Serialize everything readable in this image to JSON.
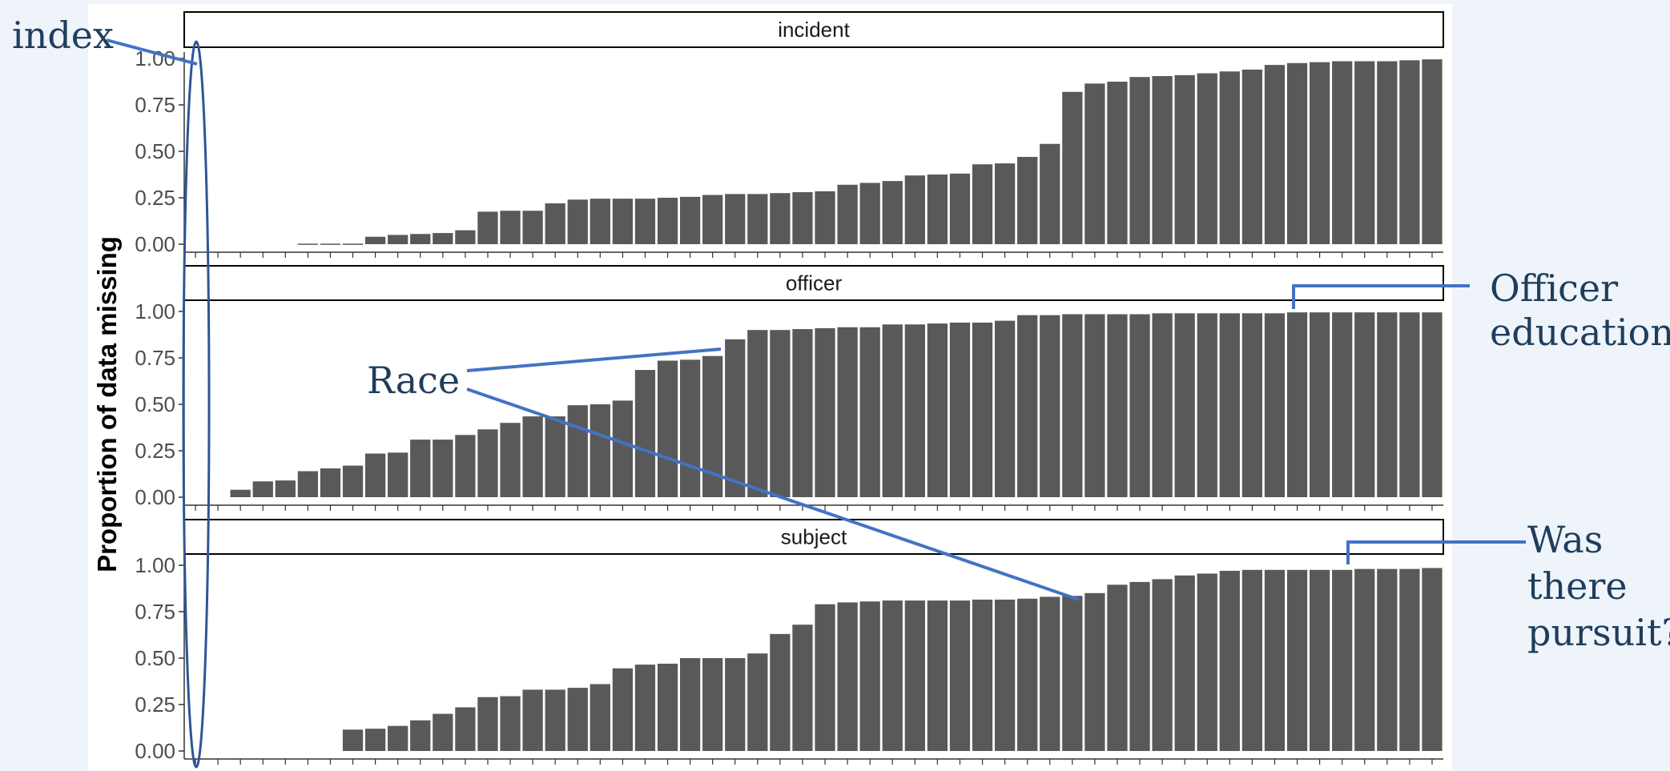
{
  "chart_data": {
    "type": "bar",
    "ylabel": "Proportion of data missing",
    "xlabel": "",
    "ylim": [
      0,
      1
    ],
    "yticks": [
      "0.00",
      "0.25",
      "0.50",
      "0.75",
      "1.00"
    ],
    "grid": false,
    "legend": "none",
    "bar_color": "#595959",
    "panels": [
      {
        "name": "incident",
        "values": [
          0,
          0,
          0,
          0,
          0,
          0,
          0.003,
          0.003,
          0.003,
          0.04,
          0.05,
          0.055,
          0.06,
          0.075,
          0.175,
          0.18,
          0.18,
          0.22,
          0.24,
          0.245,
          0.245,
          0.245,
          0.25,
          0.255,
          0.265,
          0.27,
          0.27,
          0.275,
          0.28,
          0.285,
          0.32,
          0.33,
          0.34,
          0.37,
          0.375,
          0.38,
          0.43,
          0.435,
          0.47,
          0.54,
          0.82,
          0.865,
          0.875,
          0.9,
          0.905,
          0.91,
          0.92,
          0.93,
          0.94,
          0.965,
          0.975,
          0.98,
          0.985,
          0.985,
          0.985,
          0.99,
          0.995
        ]
      },
      {
        "name": "officer",
        "values": [
          0,
          0.04,
          0.085,
          0.09,
          0.14,
          0.155,
          0.17,
          0.235,
          0.24,
          0.31,
          0.31,
          0.335,
          0.365,
          0.4,
          0.435,
          0.435,
          0.495,
          0.5,
          0.52,
          0.685,
          0.735,
          0.74,
          0.76,
          0.85,
          0.9,
          0.9,
          0.905,
          0.91,
          0.915,
          0.915,
          0.93,
          0.93,
          0.935,
          0.94,
          0.94,
          0.95,
          0.98,
          0.98,
          0.985,
          0.985,
          0.985,
          0.985,
          0.99,
          0.99,
          0.99,
          0.99,
          0.99,
          0.99,
          0.995,
          0.995,
          0.995,
          0.995,
          0.995,
          0.995,
          0.995
        ]
      },
      {
        "name": "subject",
        "values": [
          0,
          0.115,
          0.12,
          0.135,
          0.165,
          0.2,
          0.235,
          0.29,
          0.295,
          0.33,
          0.33,
          0.34,
          0.36,
          0.445,
          0.465,
          0.47,
          0.5,
          0.5,
          0.5,
          0.525,
          0.63,
          0.68,
          0.79,
          0.8,
          0.805,
          0.81,
          0.81,
          0.81,
          0.81,
          0.815,
          0.815,
          0.82,
          0.83,
          0.835,
          0.85,
          0.895,
          0.91,
          0.925,
          0.945,
          0.955,
          0.97,
          0.975,
          0.975,
          0.975,
          0.975,
          0.975,
          0.98,
          0.98,
          0.98,
          0.985
        ]
      }
    ],
    "annotations": [
      {
        "text": "index",
        "lines": [
          "index"
        ],
        "target": "first bar in each panel"
      },
      {
        "text": "Race",
        "lines": [
          "Race"
        ],
        "target": "officer race and subject race bars"
      },
      {
        "text": "Officer education",
        "lines": [
          "Officer",
          "education"
        ],
        "target": "officer panel"
      },
      {
        "text": "Was there pursuit?",
        "lines": [
          "Was",
          "there",
          "pursuit?"
        ],
        "target": "subject panel"
      }
    ],
    "annotation_color": "#4472c4",
    "annotation_text_color": "#1f3d5c"
  }
}
